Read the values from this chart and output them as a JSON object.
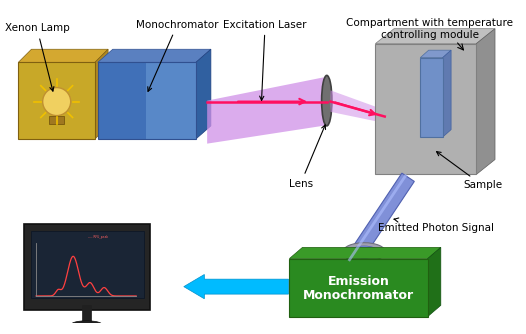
{
  "title": "",
  "background_color": "#ffffff",
  "labels": {
    "xenon_lamp": "Xenon Lamp",
    "monochromator": "Monochromator",
    "excitation_laser": "Excitation Laser",
    "compartment": "Compartment with temperature\ncontrolling module",
    "lens": "Lens",
    "sample": "Sample",
    "emission_mono_line1": "Emission",
    "emission_mono_line2": "Monochromator",
    "emitted_photon": "Emitted Photon Signal"
  },
  "colors": {
    "xenon_box_front": "#C8A828",
    "xenon_box_top": "#D4A830",
    "xenon_box_right": "#B08820",
    "mono_box_left": "#4070B8",
    "mono_box_right": "#5888C8",
    "mono_box_top": "#5A80C0",
    "mono_box_side": "#3060A0",
    "beam_purple": "#D090E8",
    "beam_pink": "#FF1060",
    "lens_gray": "#707070",
    "compartment_front": "#B0B0B0",
    "compartment_top": "#C0C0C0",
    "compartment_side": "#909090",
    "cuvette_front": "#7090C8",
    "cuvette_top": "#8099CC",
    "cuvette_side": "#607AB0",
    "emission_tube": "#8090D8",
    "emission_disk": "#A0A0B0",
    "emission_mono_front": "#2A8A20",
    "emission_mono_top": "#3A9A28",
    "emission_mono_side": "#207018",
    "emission_mono_text": "#ffffff",
    "arrow_cyan": "#00BBFF",
    "monitor_dark": "#252525",
    "monitor_screen": "#1a2535",
    "plot_line": "#FF4040",
    "text_color": "#000000"
  }
}
